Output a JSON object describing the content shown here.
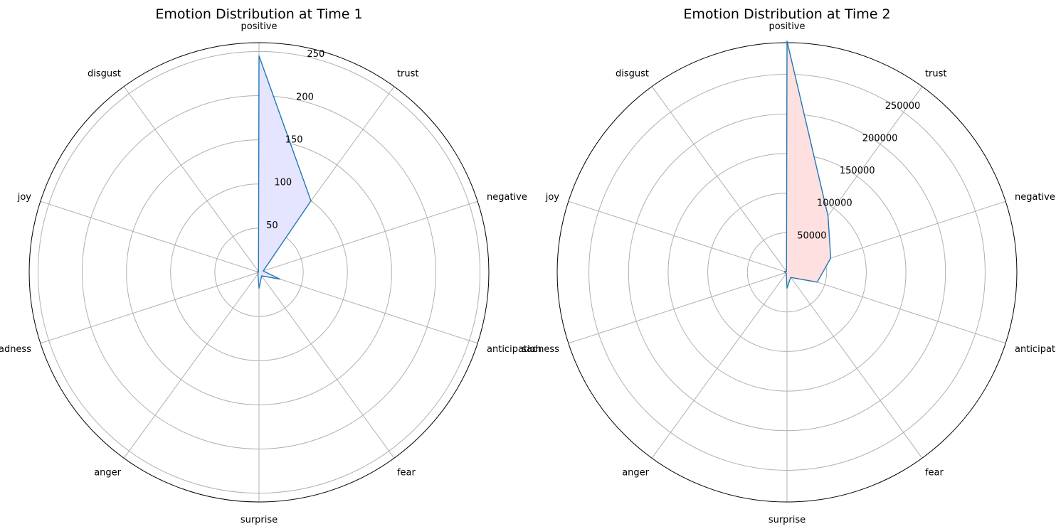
{
  "chart_data": [
    {
      "type": "radar",
      "title": "Emotion Distribution at Time 1",
      "categories": [
        "positive",
        "trust",
        "negative",
        "anticipation",
        "fear",
        "surprise",
        "anger",
        "sadness",
        "joy",
        "disgust"
      ],
      "values": [
        245,
        100,
        5,
        25,
        5,
        18,
        2,
        1,
        2,
        1
      ],
      "rlim": [
        0,
        260
      ],
      "rticks": [
        50,
        100,
        150,
        200,
        250
      ],
      "grid": true,
      "line_color": "#1f77b4",
      "fill_color": "#e5e5ff"
    },
    {
      "type": "radar",
      "title": "Emotion Distribution at Time 2",
      "categories": [
        "positive",
        "trust",
        "negative",
        "anticipation",
        "fear",
        "surprise",
        "anger",
        "sadness",
        "joy",
        "disgust"
      ],
      "values": [
        292000,
        88000,
        58000,
        40000,
        8000,
        20000,
        1500,
        2000,
        3500,
        1000
      ],
      "rlim": [
        0,
        290000
      ],
      "rticks": [
        50000,
        100000,
        150000,
        200000,
        250000
      ],
      "grid": true,
      "line_color": "#1f77b4",
      "fill_color": "#ffe0e0"
    }
  ]
}
